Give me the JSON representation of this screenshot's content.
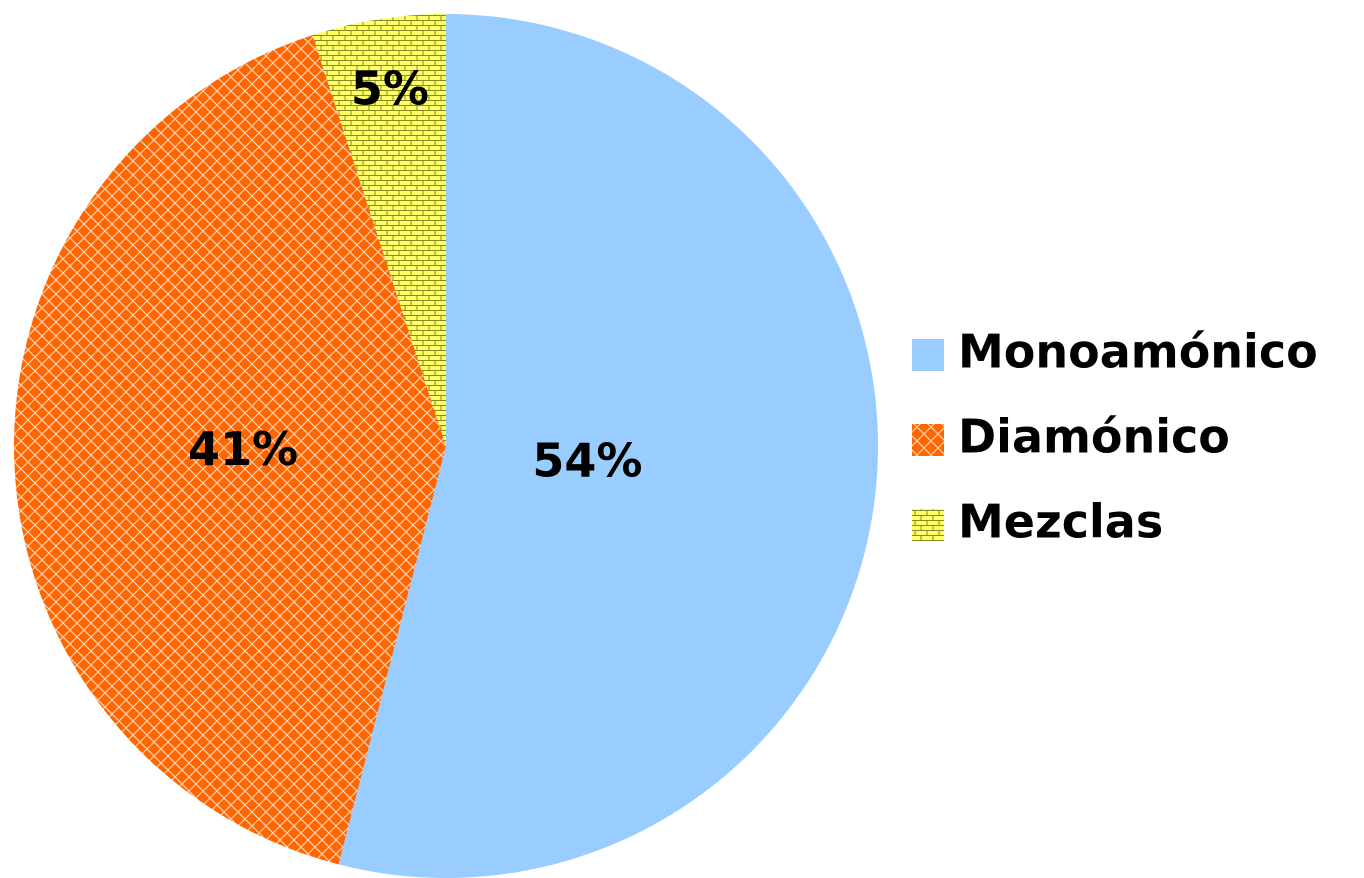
{
  "chart_data": {
    "type": "pie",
    "labels": [
      "Monoamónico",
      "Diamónico",
      "Mezclas"
    ],
    "values": [
      54,
      41,
      5
    ],
    "value_labels": [
      "54%",
      "41%",
      "5%"
    ],
    "colors": [
      "#99ccff",
      "#ff6600",
      "#ffff66"
    ],
    "legend": "right"
  }
}
